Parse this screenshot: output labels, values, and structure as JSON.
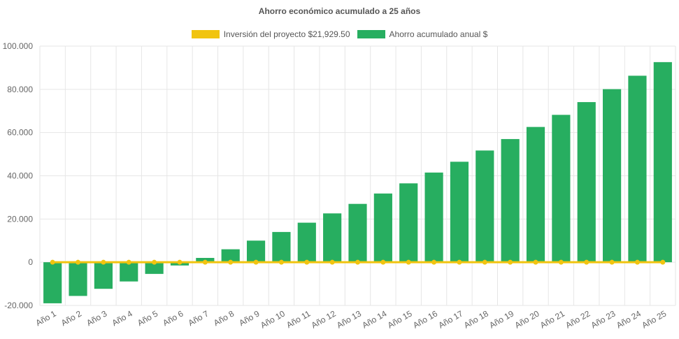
{
  "chart_data": {
    "type": "bar",
    "title": "Ahorro económico acumulado a 25 años",
    "categories": [
      "Año 1",
      "Año 2",
      "Año 3",
      "Año 4",
      "Año 5",
      "Año 6",
      "Año 7",
      "Año 8",
      "Año 9",
      "Año 10",
      "Año 11",
      "Año 12",
      "Año 13",
      "Año 14",
      "Año 15",
      "Año 16",
      "Año 17",
      "Año 18",
      "Año 19",
      "Año 20",
      "Año 21",
      "Año 22",
      "Año 23",
      "Año 24",
      "Año 25"
    ],
    "series": [
      {
        "name": "Inversión del proyecto $21,929.50",
        "type": "line",
        "color": "#f1c40f",
        "values": [
          0,
          0,
          0,
          0,
          0,
          0,
          0,
          0,
          0,
          0,
          0,
          0,
          0,
          0,
          0,
          0,
          0,
          0,
          0,
          0,
          0,
          0,
          0,
          0,
          0
        ]
      },
      {
        "name": "Ahorro acumulado anual $",
        "type": "bar",
        "color": "#27ae60",
        "values": [
          -19000,
          -15600,
          -12300,
          -8900,
          -5400,
          -1500,
          2000,
          6000,
          10000,
          14000,
          18300,
          22600,
          27000,
          31800,
          36500,
          41500,
          46500,
          51700,
          57000,
          62600,
          68200,
          74100,
          80100,
          86300,
          92600
        ]
      }
    ],
    "ylim": [
      -20000,
      100000
    ],
    "yticks": [
      "-20.000",
      "0",
      "20.000",
      "40.000",
      "60.000",
      "80.000",
      "100.000"
    ],
    "ytick_values": [
      -20000,
      0,
      20000,
      40000,
      60000,
      80000,
      100000
    ],
    "grid": true,
    "legend_position": "top"
  }
}
